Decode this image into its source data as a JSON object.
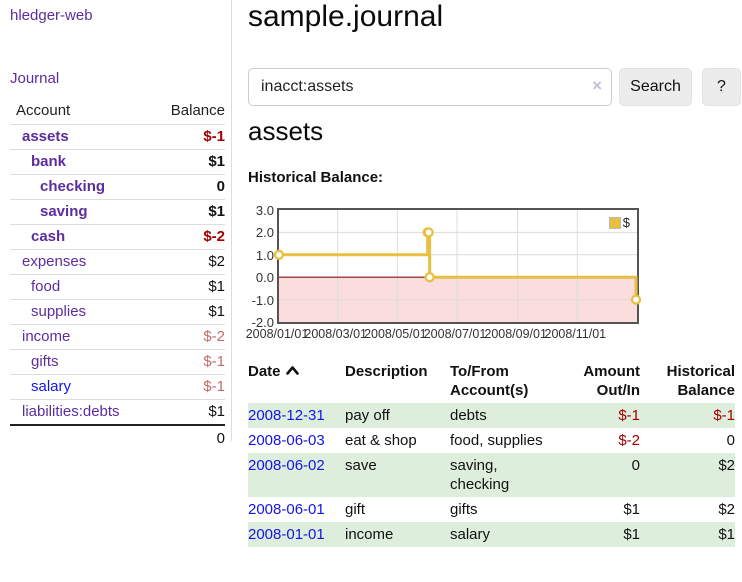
{
  "sidebar": {
    "brand": "hledger-web",
    "nav": {
      "journal": "Journal"
    },
    "accounts_table": {
      "headers": {
        "account": "Account",
        "balance": "Balance"
      },
      "rows": [
        {
          "name": "assets",
          "indent": 0,
          "bold": true,
          "balance": "$-1",
          "balance_tone": "negative-strong"
        },
        {
          "name": "bank",
          "indent": 1,
          "bold": true,
          "balance": "$1",
          "balance_tone": "normal"
        },
        {
          "name": "checking",
          "indent": 2,
          "bold": true,
          "balance": "0",
          "balance_tone": "normal"
        },
        {
          "name": "saving",
          "indent": 2,
          "bold": true,
          "balance": "$1",
          "balance_tone": "normal"
        },
        {
          "name": "cash",
          "indent": 1,
          "bold": true,
          "balance": "$-2",
          "balance_tone": "negative-strong"
        },
        {
          "name": "expenses",
          "indent": 0,
          "bold": false,
          "balance": "$2",
          "balance_tone": "normal"
        },
        {
          "name": "food",
          "indent": 1,
          "bold": false,
          "balance": "$1",
          "balance_tone": "normal"
        },
        {
          "name": "supplies",
          "indent": 1,
          "bold": false,
          "balance": "$1",
          "balance_tone": "normal"
        },
        {
          "name": "income",
          "indent": 0,
          "bold": false,
          "balance": "$-2",
          "balance_tone": "negative-soft"
        },
        {
          "name": "gifts",
          "indent": 1,
          "bold": false,
          "balance": "$-1",
          "balance_tone": "negative-soft"
        },
        {
          "name": "salary",
          "indent": 1,
          "bold": false,
          "balance": "$-1",
          "balance_tone": "negative-soft",
          "link_color": "blue"
        },
        {
          "name": "liabilities:debts",
          "indent": 0,
          "bold": false,
          "balance": "$1",
          "balance_tone": "normal"
        }
      ],
      "total": "0"
    }
  },
  "main": {
    "title": "sample.journal",
    "search": {
      "value": "inacct:assets",
      "clear_icon": "×",
      "search_button": "Search",
      "help_button": "?"
    },
    "account_heading": "assets",
    "register": {
      "headers": [
        "Date",
        "Description",
        "To/From\nAccount(s)",
        "Amount\nOut/In",
        "Historical\nBalance"
      ],
      "sort_column": "Date",
      "sort_direction": "ascending",
      "rows": [
        {
          "date": "2008-12-31",
          "description": "pay off",
          "accounts": "debts",
          "amount": "$-1",
          "amount_negative": true,
          "balance": "$-1",
          "balance_negative": true
        },
        {
          "date": "2008-06-03",
          "description": "eat & shop",
          "accounts": "food, supplies",
          "amount": "$-2",
          "amount_negative": true,
          "balance": "0",
          "balance_negative": false
        },
        {
          "date": "2008-06-02",
          "description": "save",
          "accounts": "saving, checking",
          "amount": "0",
          "amount_negative": false,
          "balance": "$2",
          "balance_negative": false
        },
        {
          "date": "2008-06-01",
          "description": "gift",
          "accounts": "gifts",
          "amount": "$1",
          "amount_negative": false,
          "balance": "$2",
          "balance_negative": false
        },
        {
          "date": "2008-01-01",
          "description": "income",
          "accounts": "salary",
          "amount": "$1",
          "amount_negative": false,
          "balance": "$1",
          "balance_negative": false
        }
      ]
    }
  },
  "chart_data": {
    "type": "line",
    "step": true,
    "title": "Historical Balance:",
    "x": [
      "2008-01-01",
      "2008-06-01",
      "2008-06-02",
      "2008-06-03",
      "2008-12-31"
    ],
    "series": [
      {
        "name": "$",
        "values": [
          1,
          2,
          2,
          0,
          -1
        ]
      }
    ],
    "xlim": [
      "2008-01-01",
      "2009-01-01"
    ],
    "ylim": [
      -2,
      3
    ],
    "y_ticks": [
      3.0,
      2.0,
      1.0,
      0.0,
      -1.0,
      -2.0
    ],
    "x_ticks": [
      "2008/01/01",
      "2008/03/01",
      "2008/05/01",
      "2008/07/01",
      "2008/09/01",
      "2008/11/01"
    ],
    "legend": {
      "label": "$",
      "position": "top-right"
    },
    "grid": true,
    "colors": {
      "line": "#e8bf40",
      "marker_fill": "#ffffff",
      "zero_line": "#8a1010",
      "negative_region": "#fbdddd",
      "grid": "#dcdcdc",
      "border": "#545454"
    }
  },
  "colors": {
    "link_purple": "#5c2d9e",
    "link_blue": "#1414e8",
    "negative_strong": "#a40000",
    "negative_soft": "#c56b6b",
    "row_stripe_green": "#ddeedd",
    "button_gray": "#ececec"
  }
}
